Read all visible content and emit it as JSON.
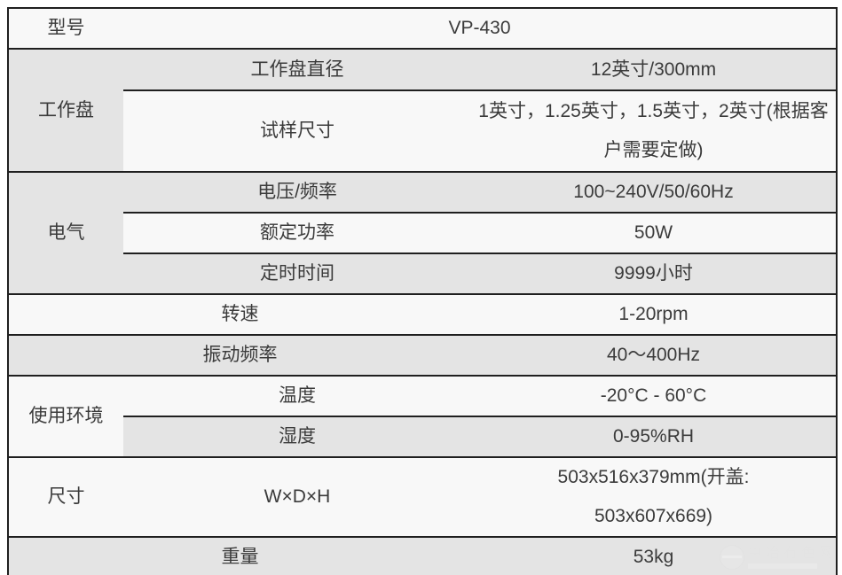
{
  "colors": {
    "row_gray": "#e4e4e4",
    "row_white": "#f8f8f8",
    "border": "#1f1f1f",
    "text": "#3b3b3b"
  },
  "spec": {
    "model_label": "型号",
    "model_value": "VP-430",
    "workdisc_label": "工作盘",
    "disc_diameter_label": "工作盘直径",
    "disc_diameter_value": "12英寸/300mm",
    "specimen_label": "试样尺寸",
    "specimen_value": "1英寸，1.25英寸，1.5英寸，2英寸(根据客户需要定做)",
    "electrical_label": "电气",
    "voltage_label": "电压/频率",
    "voltage_value": "100~240V/50/60Hz",
    "power_label": "额定功率",
    "power_value": "50W",
    "timer_label": "定时时间",
    "timer_value": "9999小时",
    "speed_label": "转速",
    "speed_value": "1-20rpm",
    "vibration_label": "振动频率",
    "vibration_value": "40～400Hz",
    "environment_label": "使用环境",
    "temperature_label": "温度",
    "temperature_value": "-20°C - 60°C",
    "humidity_label": "湿度",
    "humidity_value": "0-95%RH",
    "dimensions_label": "尺寸",
    "dimensions_sub_label": "W×D×H",
    "dimensions_value": "503x516x379mm(开盖: 503x607x669)",
    "weight_label": "重量",
    "weight_value": "53kg"
  },
  "watermark": {
    "text": "中冶有色网"
  }
}
